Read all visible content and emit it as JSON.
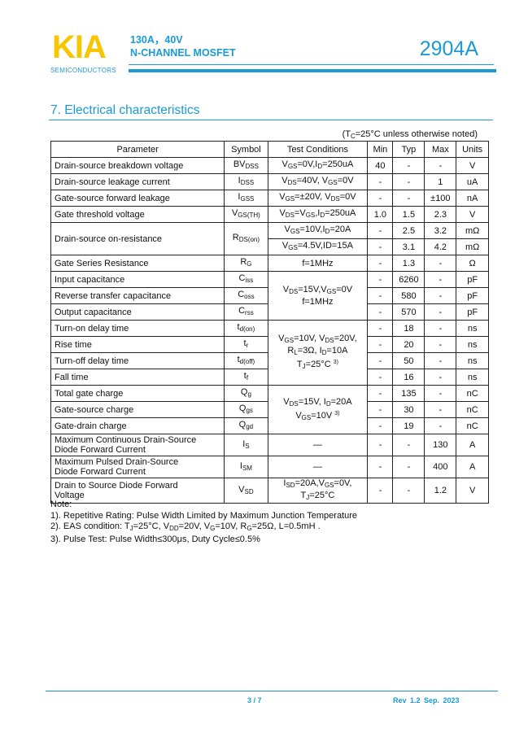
{
  "header": {
    "logo": "KIA",
    "logo_sub": "SEMICONDUCTORS",
    "line1": "130A，40V",
    "line2": "N-CHANNEL MOSFET",
    "part": "2904A",
    "accent": "#1a9ad6",
    "logo_color": "#f7c600"
  },
  "section": {
    "title": "7.  Electrical characteristics",
    "condition_note": "(T_{C}=25°C unless otherwise noted)"
  },
  "table": {
    "columns": [
      "Parameter",
      "Symbol",
      "Test Conditions",
      "Min",
      "Typ",
      "Max",
      "Units"
    ],
    "rows": [
      {
        "param": "Drain-source breakdown voltage",
        "symbol": "BV_{DSS}",
        "cond": "V_{GS}=0V,I_{D}=250uA",
        "min": "40",
        "typ": "-",
        "max": "-",
        "unit": "V"
      },
      {
        "param": "Drain-source leakage current",
        "symbol": "I_{DSS}",
        "cond": "V_{DS}=40V, V_{GS}=0V",
        "min": "-",
        "typ": "-",
        "max": "1",
        "unit": "uA"
      },
      {
        "param": "Gate-source forward leakage",
        "symbol": "I_{GSS}",
        "cond": "V_{GS}=±20V, V_{DS}=0V",
        "min": "-",
        "typ": "-",
        "max": "±100",
        "unit": "nA"
      },
      {
        "param": "Gate threshold voltage",
        "symbol": "V_{GS(TH)}",
        "cond": "V_{DS}=V_{GS},I_{D}=250uA",
        "min": "1.0",
        "typ": "1.5",
        "max": "2.3",
        "unit": "V"
      },
      {
        "param": "Drain-source on-resistance",
        "symbol": "R_{DS(on)}",
        "param_span": 2,
        "cond": "V_{GS}=10V,I_{D}=20A",
        "min": "-",
        "typ": "2.5",
        "max": "3.2",
        "unit": "mΩ"
      },
      {
        "cond": "V_{GS}=4.5V,ID=15A",
        "min": "-",
        "typ": "3.1",
        "max": "4.2",
        "unit": "mΩ"
      },
      {
        "param": "Gate Series Resistance",
        "symbol": "R_{G}",
        "cond": "f=1MHz",
        "min": "-",
        "typ": "1.3",
        "max": "-",
        "unit": "Ω"
      },
      {
        "param": "Input capacitance",
        "symbol": "C_{iss}",
        "cond": "V_{DS}=15V,V_{GS}=0V|f=1MHz",
        "cond_span": 3,
        "min": "-",
        "typ": "6260",
        "max": "-",
        "unit": "pF"
      },
      {
        "param": "Reverse transfer capacitance",
        "symbol": "C_{oss}",
        "min": "-",
        "typ": "580",
        "max": "-",
        "unit": "pF"
      },
      {
        "param": "Output capacitance",
        "symbol": "C_{rss}",
        "min": "-",
        "typ": "570",
        "max": "-",
        "unit": "pF"
      },
      {
        "param": "Turn-on delay time",
        "symbol": "t_{d(on)}",
        "cond": "V_{GS}=10V, V_{DS}=20V,|R_{L}=3Ω, I_{D}=10A|T_{J}=25°C ^{3)}",
        "cond_span": 4,
        "min": "-",
        "typ": "18",
        "max": "-",
        "unit": "ns"
      },
      {
        "param": "Rise time",
        "symbol": "t_{r}",
        "min": "-",
        "typ": "20",
        "max": "-",
        "unit": "ns"
      },
      {
        "param": "Turn-off delay time",
        "symbol": "t_{d(off)}",
        "min": "-",
        "typ": "50",
        "max": "-",
        "unit": "ns"
      },
      {
        "param": "Fall time",
        "symbol": "t_{f}",
        "min": "-",
        "typ": "16",
        "max": "-",
        "unit": "ns"
      },
      {
        "param": "Total gate charge",
        "symbol": "Q_{g}",
        "cond": "V_{DS}=15V, I_{D}=20A|V_{GS}=10V ^{3)}",
        "cond_span": 3,
        "min": "-",
        "typ": "135",
        "max": "-",
        "unit": "nC"
      },
      {
        "param": "Gate-source charge",
        "symbol": "Q_{gs}",
        "min": "-",
        "typ": "30",
        "max": "-",
        "unit": "nC"
      },
      {
        "param": "Gate-drain charge",
        "symbol": "Q_{gd}",
        "min": "-",
        "typ": "19",
        "max": "-",
        "unit": "nC"
      },
      {
        "param": "Maximum Continuous Drain-Source|Diode Forward Current",
        "symbol": "I_{S}",
        "cond": "—",
        "min": "-",
        "typ": "-",
        "max": "130",
        "unit": "A",
        "tall": true
      },
      {
        "param": "Maximum Pulsed Drain-Source|Diode Forward Current",
        "symbol": "I_{SM}",
        "cond": "—",
        "min": "-",
        "typ": "-",
        "max": "400",
        "unit": "A",
        "tall": true
      },
      {
        "param": "Drain to Source Diode Forward|Voltage",
        "symbol": "V_{SD}",
        "cond": "I_{SD}=20A,V_{GS}=0V,|T_{J}=25°C",
        "min": "-",
        "typ": "-",
        "max": "1.2",
        "unit": "V",
        "tall": true
      }
    ]
  },
  "notes": [
    "Note:",
    "1). Repetitive Rating: Pulse Width Limited by Maximum Junction Temperature",
    "2). EAS condition: T_{J}=25°C, V_{DD}=20V, V_{G}=10V, R_{G}=25Ω, L=0.5mH .",
    "3). Pulse Test: Pulse Width≤300μs, Duty Cycle≤0.5%"
  ],
  "footer": {
    "page": "3 / 7",
    "revision": "Rev 1.2   Sep. 2023"
  }
}
